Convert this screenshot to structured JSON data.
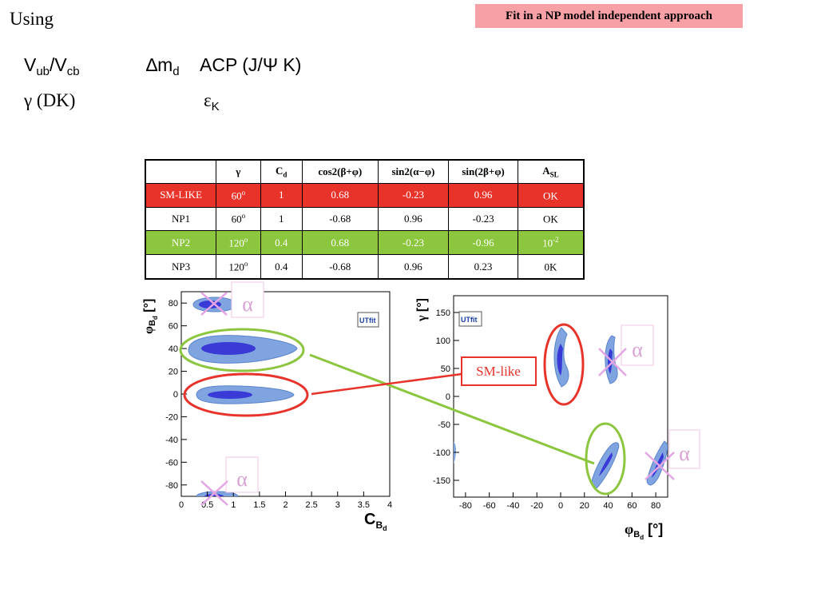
{
  "header": {
    "using": "Using",
    "badge": "Fit in a NP model independent approach"
  },
  "inputs": [
    {
      "main": "V",
      "sub": "ub",
      "main2": "/V",
      "sub2": "cb"
    },
    {
      "main": "∆m",
      "sub": "d"
    },
    {
      "text": "ACP (J/Ψ K)"
    },
    {
      "text": "γ  (DK)"
    },
    {
      "main": "ε",
      "sub": "K"
    }
  ],
  "table": {
    "headers": [
      "",
      "γ",
      "C",
      "cos2(β+φ)",
      "sin2(α−φ)",
      "sin(2β+φ)",
      "A"
    ],
    "header_subs": {
      "C": "d",
      "A": "SL"
    },
    "rows": [
      {
        "name": "SM-LIKE",
        "gamma": "60",
        "gamma_sup": "o",
        "cd": "1",
        "cos": "0.68",
        "sin2a": "-0.23",
        "sin2b": "0.96",
        "asl": "OK",
        "asl_sup": "",
        "color": "#e8332a"
      },
      {
        "name": "NP1",
        "gamma": "60",
        "gamma_sup": "o",
        "cd": "1",
        "cos": "-0.68",
        "sin2a": "0.96",
        "sin2b": "-0.23",
        "asl": "OK",
        "asl_sup": "",
        "color": "#ffffff"
      },
      {
        "name": "NP2",
        "gamma": "120",
        "gamma_sup": "o",
        "cd": "0.4",
        "cos": "0.68",
        "sin2a": "-0.23",
        "sin2b": "-0.96",
        "asl": "10",
        "asl_sup": "-2",
        "color": "#8cc63f"
      },
      {
        "name": "NP3",
        "gamma": "120",
        "gamma_sup": "o",
        "cd": "0.4",
        "cos": "-0.68",
        "sin2a": "0.96",
        "sin2b": "0.23",
        "asl": "0K",
        "asl_sup": "",
        "color": "#ffffff"
      }
    ]
  },
  "chart_data": [
    {
      "type": "scatter",
      "title": "",
      "xlabel": "C_Bd",
      "ylabel": "φ_Bd [°]",
      "xlim": [
        0,
        4
      ],
      "ylim": [
        -90,
        90
      ],
      "xticks": [
        "0",
        "0.5",
        "1",
        "1.5",
        "2",
        "2.5",
        "3",
        "3.5",
        "4"
      ],
      "yticks": [
        "80",
        "60",
        "40",
        "20",
        "0",
        "-20",
        "-40",
        "-60",
        "-80"
      ],
      "logo": "UTfit",
      "regions": [
        {
          "name": "upper",
          "x": 0.6,
          "y": 82
        },
        {
          "name": "NP2",
          "x": 1.0,
          "y": 43
        },
        {
          "name": "SM-like",
          "x": 1.0,
          "y": 0
        },
        {
          "name": "lower",
          "x": 0.7,
          "y": -88
        }
      ],
      "markers": [
        {
          "label": "α",
          "x": 0.7,
          "y": 82
        },
        {
          "label": "α",
          "x": 0.65,
          "y": -85
        }
      ]
    },
    {
      "type": "scatter",
      "title": "",
      "xlabel": "φ_Bd [°]",
      "ylabel": "γ [°]",
      "xlim": [
        -90,
        90
      ],
      "ylim": [
        -180,
        180
      ],
      "xticks": [
        "-80",
        "-60",
        "-40",
        "-20",
        "0",
        "20",
        "40",
        "60",
        "80"
      ],
      "yticks": [
        "150",
        "100",
        "50",
        "0",
        "-50",
        "-100",
        "-150"
      ],
      "logo": "UTfit",
      "regions": [
        {
          "name": "SM-like",
          "x": 3,
          "y": 70
        },
        {
          "name": "upper-right",
          "x": 45,
          "y": 70
        },
        {
          "name": "NP2",
          "x": 40,
          "y": -110
        },
        {
          "name": "lower-right",
          "x": 85,
          "y": -115
        }
      ],
      "markers": [
        {
          "label": "α",
          "x": 42,
          "y": 68
        },
        {
          "label": "α",
          "x": 84,
          "y": -110
        }
      ]
    }
  ],
  "annotations": {
    "sm_like": "SM-like",
    "alpha": "α"
  },
  "colors": {
    "red": "#e8332a",
    "green": "#8cc63f",
    "pink": "#f7a1a6",
    "blob_outer": "#7fa4e0",
    "blob_inner": "#3a3ad6"
  }
}
